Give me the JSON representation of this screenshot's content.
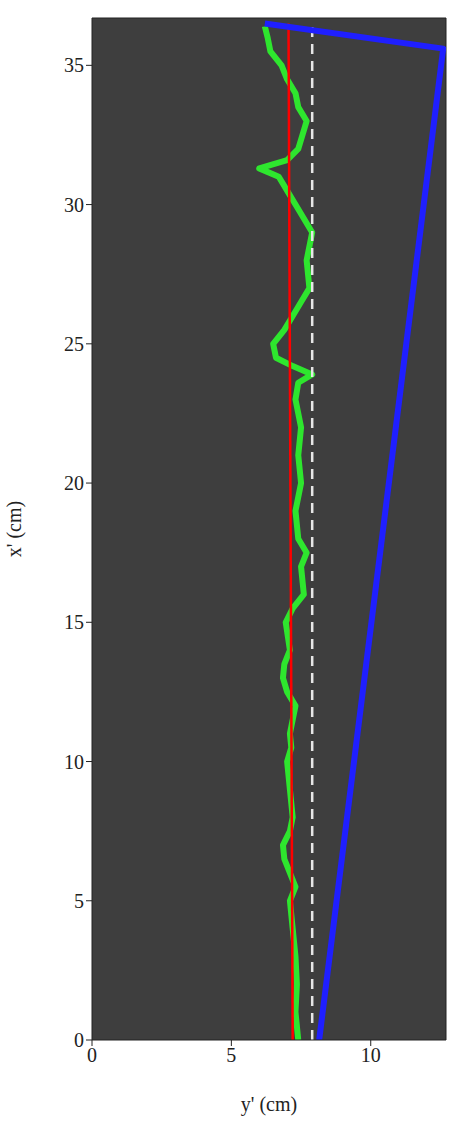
{
  "chart_data": {
    "type": "line",
    "x_label": "y' (cm)",
    "y_label": "x' (cm)",
    "xlim": [
      0,
      12.7
    ],
    "xticks": [
      0,
      5,
      10
    ],
    "ylim": [
      0,
      36.7
    ],
    "yticks": [
      0,
      5,
      10,
      15,
      20,
      25,
      30,
      35
    ],
    "grid": false,
    "series": [
      {
        "color": "#2ee62e",
        "line_style": "solid",
        "x": [
          7.4,
          7.3,
          7.35,
          7.3,
          7.2,
          7.1,
          7.3,
          7.1,
          6.9,
          6.85,
          7.1,
          7.2,
          7.1,
          7.0,
          7.15,
          7.1,
          7.3,
          7.0,
          6.85,
          6.9,
          7.1,
          6.95,
          7.2,
          7.6,
          7.5,
          7.7,
          7.4,
          7.3,
          7.5,
          7.4,
          7.5,
          7.3,
          7.4,
          7.9,
          7.2,
          6.6,
          6.5,
          6.9,
          7.2,
          7.5,
          7.8,
          7.7,
          7.9,
          7.6,
          7.3,
          7.0,
          6.7,
          6.0,
          7.0,
          7.4,
          7.7,
          7.4,
          7.3,
          7.0,
          6.8,
          6.4,
          6.3,
          6.2
        ],
        "values": [
          0,
          1,
          2,
          3,
          4,
          5,
          5.5,
          6,
          6.5,
          7,
          7.5,
          8,
          9,
          10,
          10.5,
          11,
          12,
          12.5,
          13,
          13.5,
          14,
          15,
          15.5,
          16,
          17,
          17.5,
          18,
          19,
          20,
          21,
          22,
          23,
          23.6,
          23.9,
          24.2,
          24.5,
          25,
          25.5,
          26,
          26.5,
          27,
          28,
          29,
          29.5,
          30,
          30.5,
          31,
          31.3,
          31.6,
          32,
          33,
          33.5,
          34,
          34.5,
          35,
          35.5,
          36,
          36.4
        ]
      },
      {
        "color": "#ff0000",
        "line_style": "solid",
        "x": [
          7.2,
          7.05
        ],
        "values": [
          0,
          36.5
        ]
      },
      {
        "color": "#e6e6e6",
        "line_style": "dashed",
        "x": [
          7.9,
          7.9
        ],
        "values": [
          0,
          36.6
        ]
      },
      {
        "color": "#1f1fff",
        "line_style": "solid",
        "x": [
          8.15,
          12.6,
          6.2
        ],
        "values": [
          0,
          35.6,
          36.5
        ]
      }
    ]
  }
}
